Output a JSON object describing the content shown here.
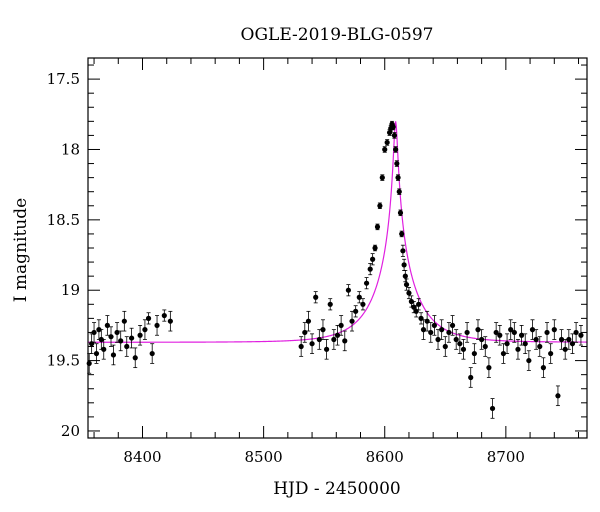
{
  "chart_data": {
    "type": "scatter",
    "title": "OGLE-2019-BLG-0597",
    "xlabel": "HJD - 2450000",
    "ylabel": "I magnitude",
    "xlim": [
      8355,
      8767
    ],
    "ylim": [
      17.35,
      20.05
    ],
    "y_inverted": true,
    "grid": false,
    "x_ticks": [
      8400,
      8500,
      8600,
      8700
    ],
    "x_tick_labels": [
      "8400",
      "8500",
      "8600",
      "8700"
    ],
    "y_ticks": [
      17.5,
      18,
      18.5,
      19,
      19.5,
      20
    ],
    "y_tick_labels": [
      "17.5",
      "18",
      "18.5",
      "19",
      "19.5",
      "20"
    ],
    "colors": {
      "data": "#000000",
      "model": "#e020e0",
      "axes": "#000000"
    },
    "series": [
      {
        "kind": "observations",
        "x": [
          8356,
          8358,
          8360,
          8362,
          8364,
          8366,
          8368,
          8371,
          8374,
          8376,
          8379,
          8382,
          8385,
          8387,
          8391,
          8394,
          8398,
          8402,
          8405,
          8408,
          8412,
          8418,
          8423,
          8531,
          8534,
          8537,
          8540,
          8543,
          8546,
          8549,
          8552,
          8555,
          8558,
          8561,
          8564,
          8567,
          8570,
          8573,
          8576,
          8579,
          8582,
          8585,
          8588,
          8590,
          8592,
          8594,
          8596,
          8598,
          8600,
          8602,
          8604,
          8605,
          8606,
          8607,
          8608,
          8609,
          8610,
          8611,
          8612,
          8613,
          8614,
          8615,
          8616,
          8617,
          8618,
          8620,
          8622,
          8624,
          8626,
          8628,
          8630,
          8632,
          8635,
          8638,
          8641,
          8644,
          8647,
          8650,
          8653,
          8656,
          8659,
          8662,
          8665,
          8668,
          8671,
          8674,
          8677,
          8680,
          8683,
          8686,
          8689,
          8692,
          8695,
          8698,
          8701,
          8704,
          8707,
          8710,
          8713,
          8716,
          8719,
          8722,
          8725,
          8728,
          8731,
          8734,
          8737,
          8740,
          8743,
          8746,
          8749,
          8752,
          8755,
          8758,
          8762
        ],
        "y": [
          19.52,
          19.38,
          19.3,
          19.45,
          19.28,
          19.35,
          19.42,
          19.25,
          19.33,
          19.46,
          19.3,
          19.36,
          19.22,
          19.4,
          19.34,
          19.48,
          19.32,
          19.28,
          19.2,
          19.45,
          19.25,
          19.18,
          19.22,
          19.4,
          19.3,
          19.22,
          19.38,
          19.05,
          19.35,
          19.28,
          19.42,
          19.1,
          19.35,
          19.32,
          19.25,
          19.36,
          19.0,
          19.22,
          19.15,
          19.05,
          19.1,
          18.95,
          18.85,
          18.78,
          18.7,
          18.55,
          18.4,
          18.2,
          18.0,
          17.95,
          17.88,
          17.85,
          17.82,
          17.84,
          17.9,
          18.0,
          18.1,
          18.2,
          18.3,
          18.45,
          18.6,
          18.72,
          18.82,
          18.9,
          18.96,
          19.02,
          19.08,
          19.12,
          19.15,
          19.1,
          19.2,
          19.28,
          19.22,
          19.3,
          19.25,
          19.35,
          19.28,
          19.4,
          19.3,
          19.25,
          19.35,
          19.38,
          19.42,
          19.3,
          19.62,
          19.45,
          19.28,
          19.35,
          19.4,
          19.55,
          19.84,
          19.3,
          19.32,
          19.45,
          19.38,
          19.28,
          19.3,
          19.42,
          19.32,
          19.38,
          19.5,
          19.28,
          19.35,
          19.4,
          19.55,
          19.3,
          19.45,
          19.28,
          19.75,
          19.35,
          19.42,
          19.35,
          19.38,
          19.3,
          19.32
        ]
      },
      {
        "kind": "model",
        "t0": 8609,
        "baseline": 19.37,
        "peak_mag": 17.8,
        "u0": 0.045,
        "tE": 32
      }
    ]
  }
}
